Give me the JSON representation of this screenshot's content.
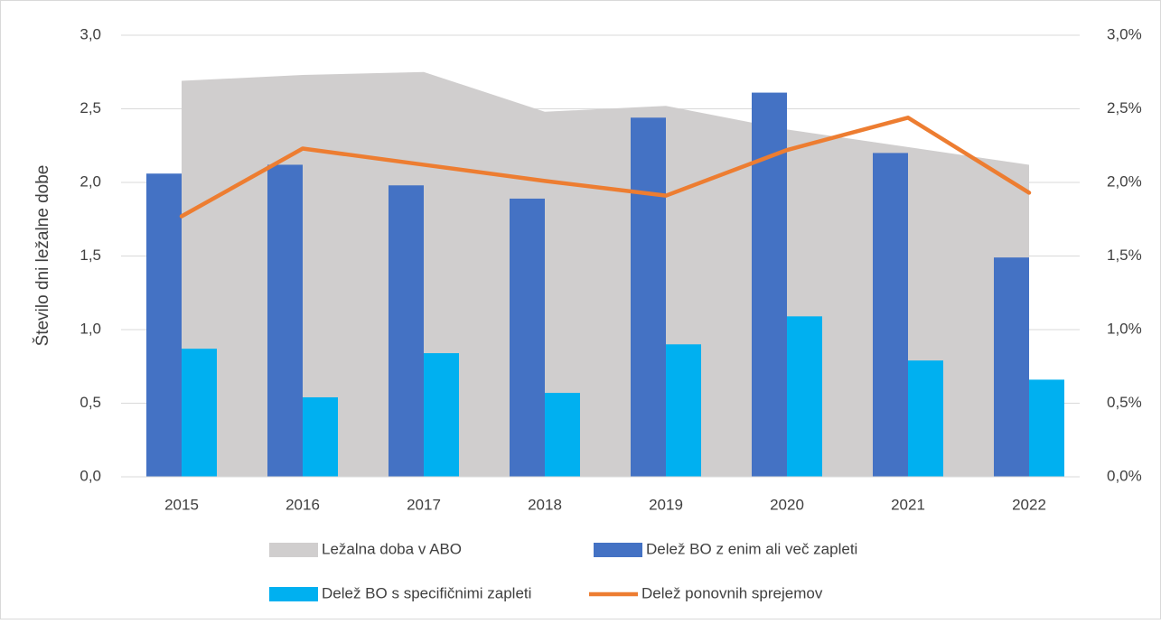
{
  "chart_data": {
    "type": "combo",
    "y_label": "Število dni ležalne dobe",
    "categories": [
      "2015",
      "2016",
      "2017",
      "2018",
      "2019",
      "2020",
      "2021",
      "2022"
    ],
    "series": [
      {
        "name": "Ležalna doba v ABO",
        "type": "area",
        "color": "#d0cece",
        "axis": "y",
        "values": [
          2.69,
          2.73,
          2.75,
          2.48,
          2.52,
          2.36,
          2.24,
          2.12
        ]
      },
      {
        "name": "Delež BO z enim ali več zapleti",
        "type": "bar",
        "color": "#4472c4",
        "axis": "y2",
        "values": [
          2.06,
          2.12,
          1.98,
          1.89,
          2.44,
          2.61,
          2.2,
          1.49
        ]
      },
      {
        "name": "Delež BO s specifičnimi zapleti",
        "type": "bar",
        "color": "#00b0f0",
        "axis": "y2",
        "values": [
          0.87,
          0.54,
          0.84,
          0.57,
          0.9,
          1.09,
          0.79,
          0.66
        ]
      },
      {
        "name": "Delež ponovnih sprejemov",
        "type": "line",
        "color": "#ed7d31",
        "axis": "y2",
        "values": [
          1.77,
          2.23,
          2.12,
          2.01,
          1.91,
          2.22,
          2.44,
          1.93
        ]
      }
    ],
    "ylim": [
      0,
      3
    ],
    "yticks": [
      {
        "value": 0,
        "label": "0,0"
      },
      {
        "value": 0.5,
        "label": "0,5"
      },
      {
        "value": 1,
        "label": "1,0"
      },
      {
        "value": 1.5,
        "label": "1,5"
      },
      {
        "value": 2,
        "label": "2,0"
      },
      {
        "value": 2.5,
        "label": "2,5"
      },
      {
        "value": 3,
        "label": "3,0"
      }
    ],
    "y2lim": [
      0,
      3
    ],
    "y2ticks": [
      {
        "value": 0,
        "label": "0,0%"
      },
      {
        "value": 0.5,
        "label": "0,5%"
      },
      {
        "value": 1,
        "label": "1,0%"
      },
      {
        "value": 1.5,
        "label": "1,5%"
      },
      {
        "value": 2,
        "label": "2,0%"
      },
      {
        "value": 2.5,
        "label": "2,5%"
      },
      {
        "value": 3,
        "label": "3,0%"
      }
    ],
    "grid": true,
    "legend": "bottom"
  }
}
